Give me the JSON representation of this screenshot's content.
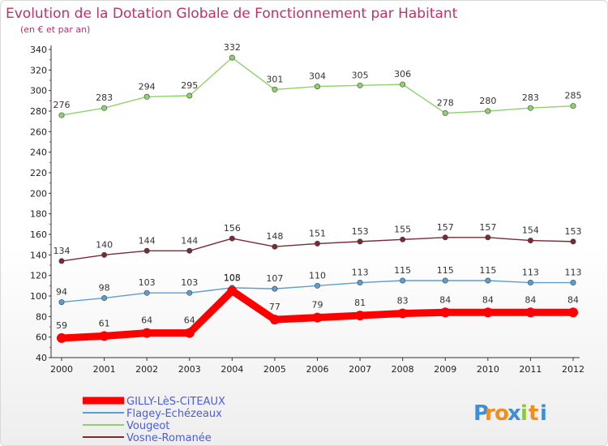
{
  "chart_data": {
    "type": "line",
    "title": "Evolution de la Dotation Globale de Fonctionnement par Habitant",
    "subtitle": "(en € et par an)",
    "x": [
      "2000",
      "2001",
      "2002",
      "2003",
      "2004",
      "2005",
      "2006",
      "2007",
      "2008",
      "2009",
      "2010",
      "2011",
      "2012"
    ],
    "ylim": [
      40,
      340
    ],
    "yticks": [
      "40",
      "60",
      "80",
      "100",
      "120",
      "140",
      "160",
      "180",
      "200",
      "220",
      "240",
      "260",
      "280",
      "300",
      "320",
      "340"
    ],
    "grid": false,
    "legend_position": "bottom-left",
    "series": [
      {
        "name": "Vougeot",
        "color": "#8fd16a",
        "values": [
          276,
          283,
          294,
          295,
          332,
          301,
          304,
          305,
          306,
          278,
          280,
          283,
          285
        ],
        "labels": [
          "276",
          "283",
          "294",
          "295",
          "332",
          "301",
          "304",
          "305",
          "306",
          "278",
          "280",
          "283",
          "285"
        ]
      },
      {
        "name": "Vosne-Romanée",
        "color": "#7a2a32",
        "values": [
          134,
          140,
          144,
          144,
          156,
          148,
          151,
          153,
          155,
          157,
          157,
          154,
          153
        ],
        "labels": [
          "134",
          "140",
          "144",
          "144",
          "156",
          "148",
          "151",
          "153",
          "155",
          "157",
          "157",
          "154",
          "153"
        ]
      },
      {
        "name": "Flagey-Echézeaux",
        "color": "#5b9fd0",
        "values": [
          94,
          98,
          103,
          103,
          108,
          107,
          110,
          113,
          115,
          115,
          115,
          113,
          113
        ],
        "labels": [
          "94",
          "98",
          "103",
          "103",
          "108",
          "107",
          "110",
          "113",
          "115",
          "115",
          "115",
          "113",
          "113"
        ]
      },
      {
        "name": "GILLY-LèS-CiTEAUX",
        "color": "#ff0000",
        "values": [
          59,
          61,
          64,
          64,
          105,
          77,
          79,
          81,
          83,
          84,
          84,
          84,
          84
        ],
        "labels": [
          "59",
          "61",
          "64",
          "64",
          "105",
          "77",
          "79",
          "81",
          "83",
          "84",
          "84",
          "84",
          "84"
        ]
      }
    ],
    "legend": [
      {
        "name": "GILLY-LèS-CiTEAUX",
        "color": "#ff0000",
        "text_color": "#4a5de0"
      },
      {
        "name": "Flagey-Echézeaux",
        "color": "#5b9fd0",
        "text_color": "#4a5de0"
      },
      {
        "name": "Vougeot",
        "color": "#8fd16a",
        "text_color": "#4a5de0"
      },
      {
        "name": "Vosne-Romanée",
        "color": "#7a2a32",
        "text_color": "#4a5de0"
      }
    ]
  },
  "brand": {
    "letters": [
      "P",
      "r",
      "o",
      "x",
      "i",
      "t",
      "i"
    ],
    "colors": [
      "#3e8fd6",
      "#f28c1b",
      "#f28c1b",
      "#3e8fd6",
      "#8cc63e",
      "#f28c1b",
      "#3e8fd6"
    ]
  }
}
